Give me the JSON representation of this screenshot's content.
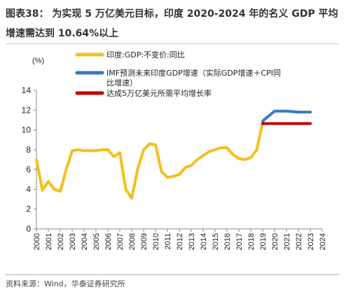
{
  "title": {
    "line1": "图表38：  为实现 5 万亿美元目标，印度 2020-2024 年的名义 GDP 平均",
    "line2": "增速需达到 10.64%以上"
  },
  "source": "资料来源：Wind，华泰证券研究所",
  "chart_data": {
    "type": "line",
    "ylabel": "(%)",
    "ylim": [
      0,
      14
    ],
    "yticks": [
      0,
      2,
      4,
      6,
      8,
      10,
      12,
      14
    ],
    "categories": [
      "2000",
      "2001",
      "2002",
      "2003",
      "2004",
      "2005",
      "2006",
      "2007",
      "2008",
      "2009",
      "2010",
      "2011",
      "2012",
      "2013",
      "2014",
      "2015",
      "2016",
      "2017",
      "2018",
      "2019",
      "2020",
      "2021",
      "2022",
      "2023",
      "2024"
    ],
    "series": [
      {
        "name": "印度:GDP:不变价:同比",
        "color": "#F5BE1E",
        "x": [
          2000,
          2000.5,
          2001,
          2001.5,
          2002,
          2002.5,
          2003,
          2003.5,
          2004,
          2004.5,
          2005,
          2005.5,
          2006,
          2006.5,
          2007,
          2007.5,
          2008,
          2008.5,
          2009,
          2009.5,
          2010,
          2010.5,
          2011,
          2011.5,
          2012,
          2012.5,
          2013,
          2013.5,
          2014,
          2014.5,
          2015,
          2015.5,
          2016,
          2016.5,
          2017,
          2017.5,
          2018,
          2018.5,
          2019
        ],
        "values": [
          7.0,
          3.9,
          4.8,
          4.0,
          3.8,
          6.0,
          7.9,
          8.0,
          7.9,
          7.9,
          7.9,
          8.0,
          8.0,
          7.3,
          7.7,
          4.0,
          3.1,
          6.0,
          8.0,
          8.6,
          8.5,
          5.8,
          5.2,
          5.3,
          5.5,
          6.2,
          6.4,
          7.0,
          7.4,
          7.8,
          8.0,
          8.2,
          8.2,
          7.5,
          7.1,
          7.0,
          7.2,
          8.0,
          10.8
        ]
      },
      {
        "name": "IMF预测未来印度GDP增速（实际GDP增速＋CPI同比增速）",
        "color": "#3A78BE",
        "x": [
          2019,
          2020,
          2021,
          2022,
          2023
        ],
        "values": [
          10.9,
          11.9,
          11.9,
          11.8,
          11.8
        ]
      },
      {
        "name": "达成5万亿美元所需平均增长率",
        "color": "#C00000",
        "x": [
          2019,
          2020,
          2021,
          2022,
          2023
        ],
        "values": [
          10.64,
          10.64,
          10.64,
          10.64,
          10.64
        ]
      }
    ],
    "grid": false,
    "legend_position": "top-center"
  }
}
